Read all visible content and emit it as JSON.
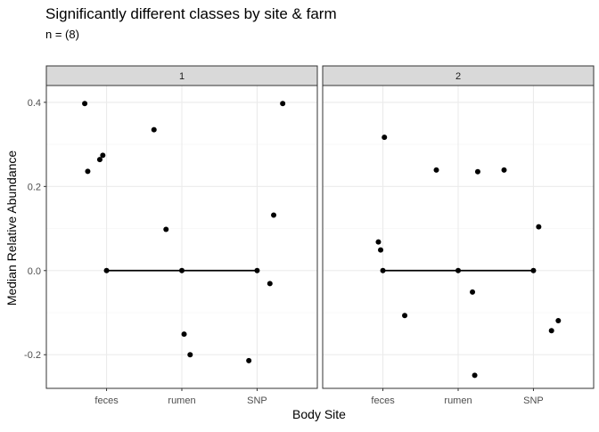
{
  "chart_data": {
    "type": "scatter",
    "title": "Significantly different classes by site & farm",
    "subtitle": "n = (8)",
    "xlabel": "Body Site",
    "ylabel": "Median Relative Abundance",
    "categories": [
      "feces",
      "rumen",
      "SNP"
    ],
    "ylim": [
      -0.28,
      0.44
    ],
    "yticks": [
      -0.2,
      0.0,
      0.2,
      0.4
    ],
    "ytick_labels": [
      "-0.2",
      "0.0",
      "0.2",
      "0.4"
    ],
    "grid": true,
    "facets": [
      {
        "label": "1",
        "points": [
          {
            "x": "feces",
            "jitter": -0.29,
            "y": 0.397
          },
          {
            "x": "feces",
            "jitter": -0.25,
            "y": 0.236
          },
          {
            "x": "feces",
            "jitter": -0.09,
            "y": 0.264
          },
          {
            "x": "feces",
            "jitter": -0.05,
            "y": 0.274
          },
          {
            "x": "rumen",
            "jitter": -0.37,
            "y": 0.335
          },
          {
            "x": "rumen",
            "jitter": -0.21,
            "y": 0.098
          },
          {
            "x": "rumen",
            "jitter": 0.03,
            "y": -0.151
          },
          {
            "x": "rumen",
            "jitter": 0.11,
            "y": -0.2
          },
          {
            "x": "SNP",
            "jitter": -0.11,
            "y": -0.214
          },
          {
            "x": "SNP",
            "jitter": 0.17,
            "y": -0.031
          },
          {
            "x": "SNP",
            "jitter": 0.22,
            "y": 0.132
          },
          {
            "x": "SNP",
            "jitter": 0.34,
            "y": 0.397
          }
        ],
        "median_line": [
          {
            "x": "feces",
            "y": 0.0
          },
          {
            "x": "rumen",
            "y": 0.0
          },
          {
            "x": "SNP",
            "y": 0.0
          }
        ]
      },
      {
        "label": "2",
        "points": [
          {
            "x": "feces",
            "jitter": -0.06,
            "y": 0.068
          },
          {
            "x": "feces",
            "jitter": -0.03,
            "y": 0.049
          },
          {
            "x": "feces",
            "jitter": 0.02,
            "y": 0.317
          },
          {
            "x": "feces",
            "jitter": 0.29,
            "y": -0.107
          },
          {
            "x": "rumen",
            "jitter": -0.29,
            "y": 0.239
          },
          {
            "x": "rumen",
            "jitter": 0.19,
            "y": -0.051
          },
          {
            "x": "rumen",
            "jitter": 0.22,
            "y": -0.249
          },
          {
            "x": "rumen",
            "jitter": 0.26,
            "y": 0.235
          },
          {
            "x": "SNP",
            "jitter": -0.39,
            "y": 0.239
          },
          {
            "x": "SNP",
            "jitter": 0.07,
            "y": 0.104
          },
          {
            "x": "SNP",
            "jitter": 0.24,
            "y": -0.143
          },
          {
            "x": "SNP",
            "jitter": 0.33,
            "y": -0.119
          }
        ],
        "median_line": [
          {
            "x": "feces",
            "y": 0.0
          },
          {
            "x": "rumen",
            "y": 0.0
          },
          {
            "x": "SNP",
            "y": 0.0
          }
        ]
      }
    ],
    "colors": {
      "point": "#000000",
      "line": "#000000",
      "strip_fill": "#d9d9d9",
      "strip_border": "#333333",
      "panel_border": "#333333",
      "grid": "#ebebeb",
      "axis_text": "#4d4d4d",
      "text": "#000000"
    }
  }
}
